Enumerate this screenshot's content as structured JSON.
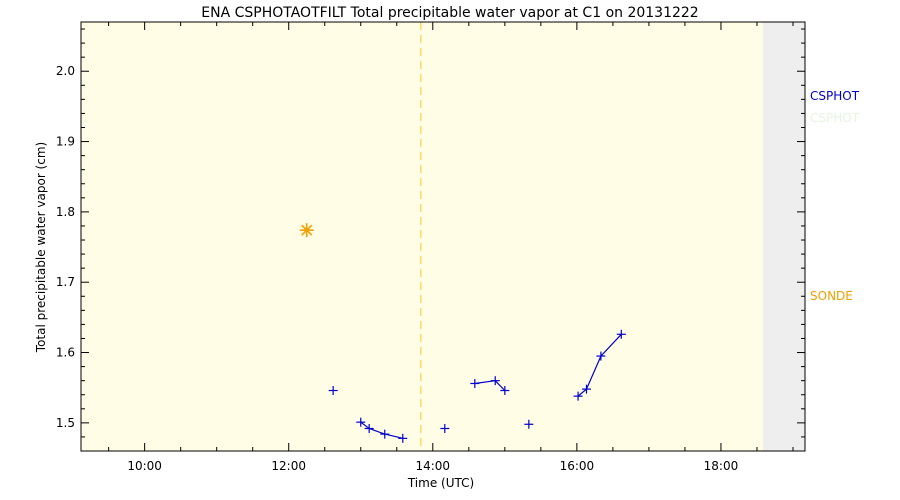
{
  "chart_data": {
    "type": "scatter",
    "title": "ENA CSPHOTAOTFILT Total precipitable water vapor at C1 on 20131222",
    "xlabel": "Time (UTC)",
    "ylabel": "Total precipitable water vapor (cm)",
    "xlim": [
      "09:07",
      "19:10"
    ],
    "ylim": [
      1.46,
      2.07
    ],
    "x_ticks": [
      "10:00",
      "12:00",
      "14:00",
      "16:00",
      "18:00"
    ],
    "y_ticks": [
      "1.5",
      "1.6",
      "1.7",
      "1.8",
      "1.9",
      "2.0"
    ],
    "plot_background": "#fffde6",
    "shaded_region_start": "18:35",
    "shaded_region_color": "#eeeeee",
    "vertical_marker_time": "13:50",
    "vertical_marker_color": "#ffd966",
    "series": [
      {
        "name": "CSPHOT",
        "color": "#0000cc",
        "marker": "plus",
        "points": [
          {
            "x": "12:37",
            "y": 1.546
          },
          {
            "x": "13:00",
            "y": 1.501
          },
          {
            "x": "13:07",
            "y": 1.492
          },
          {
            "x": "13:20",
            "y": 1.484
          },
          {
            "x": "13:35",
            "y": 1.478
          },
          {
            "x": "14:10",
            "y": 1.492
          },
          {
            "x": "14:35",
            "y": 1.556
          },
          {
            "x": "14:52",
            "y": 1.56
          },
          {
            "x": "15:00",
            "y": 1.546
          },
          {
            "x": "15:20",
            "y": 1.498
          },
          {
            "x": "16:01",
            "y": 1.538
          },
          {
            "x": "16:08",
            "y": 1.548
          },
          {
            "x": "16:20",
            "y": 1.595
          },
          {
            "x": "16:37",
            "y": 1.626
          }
        ],
        "segments": [
          [
            1,
            4
          ],
          [
            6,
            8
          ],
          [
            10,
            13
          ]
        ]
      },
      {
        "name": "SONDE",
        "color": "#f0a000",
        "marker": "asterisk",
        "points": [
          {
            "x": "12:15",
            "y": 1.774
          }
        ]
      }
    ],
    "legend_position": "right",
    "extra_legend_color": "#e6f4e0"
  }
}
